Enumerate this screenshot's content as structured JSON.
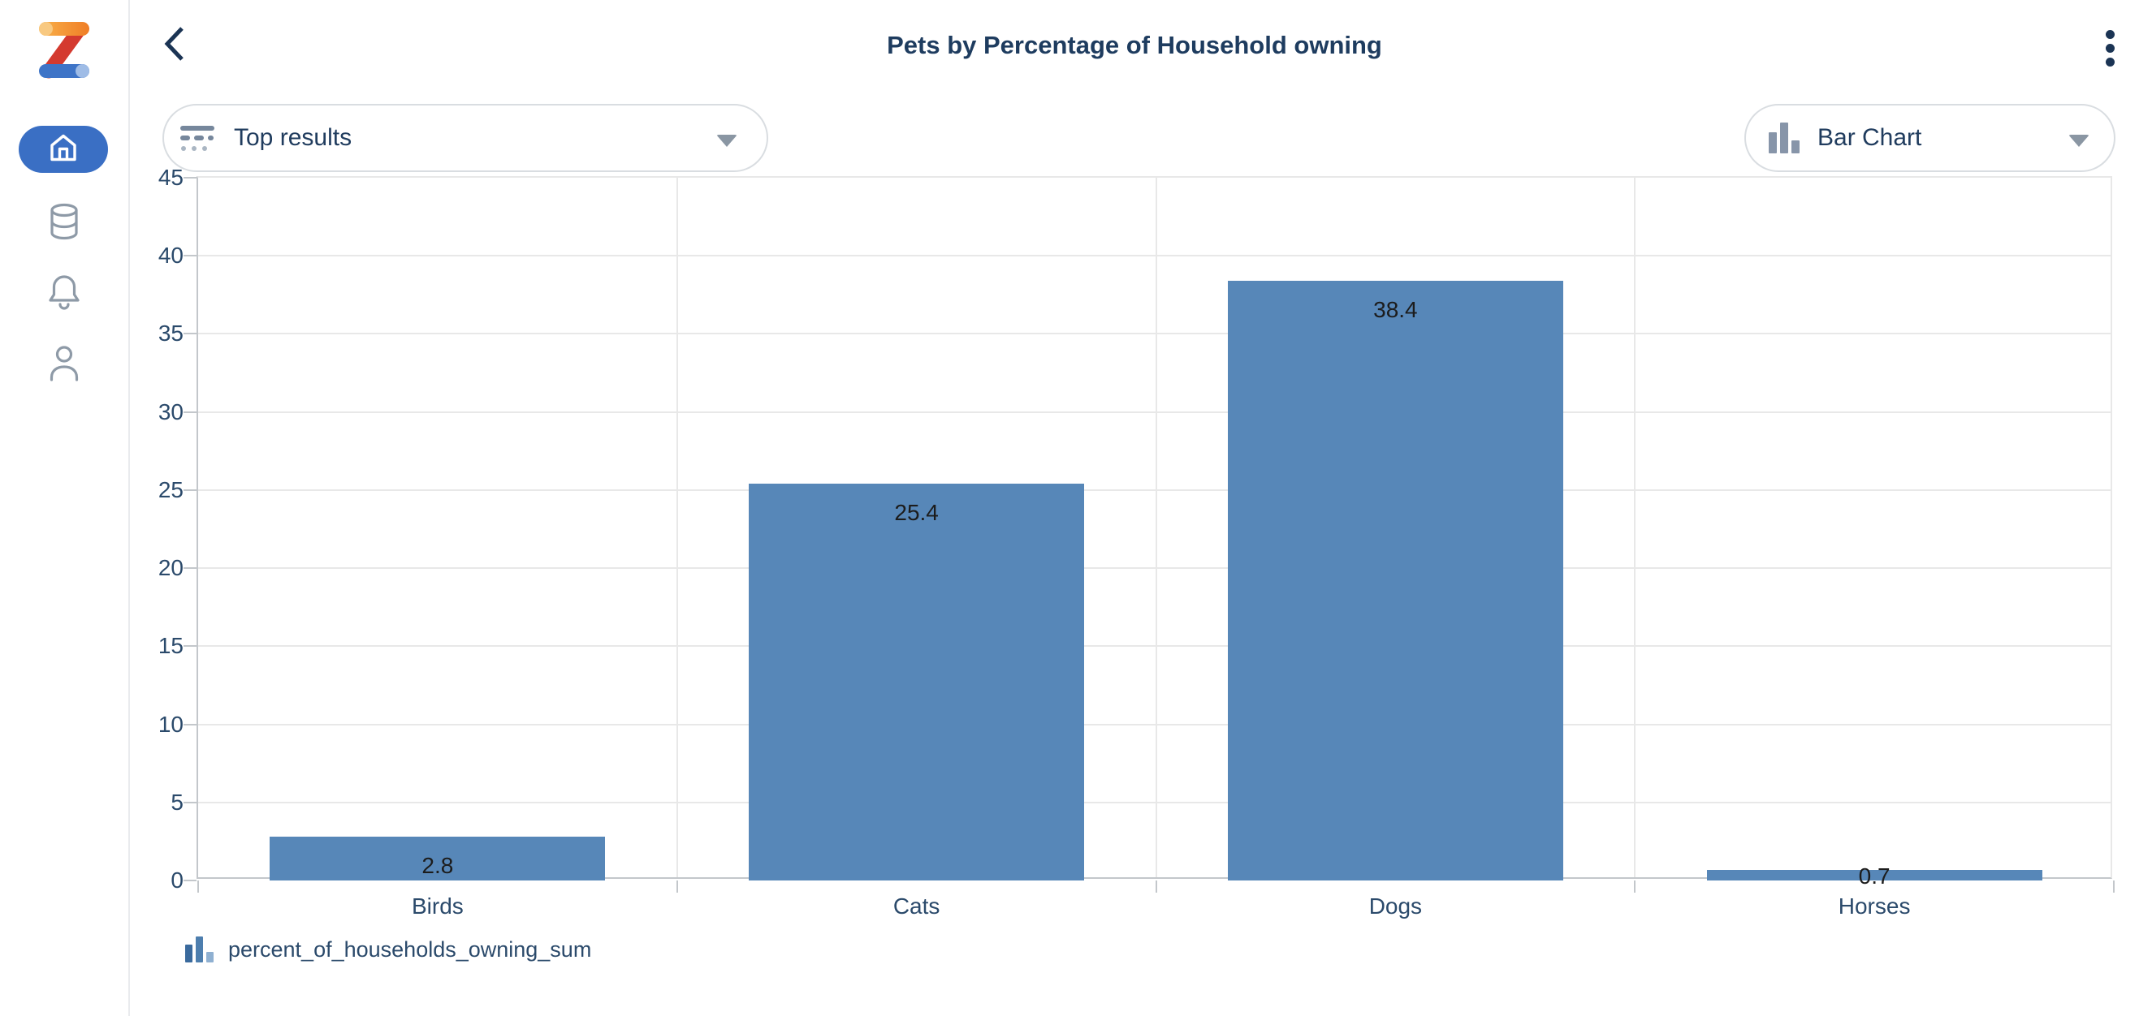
{
  "app": {
    "brand": "Zing Data"
  },
  "header": {
    "title": "Pets by Percentage of Household owning",
    "back_icon": "chevron-left-icon",
    "menu_icon": "kebab-vertical-icon"
  },
  "sidebar": {
    "items": [
      {
        "icon": "home-icon",
        "active": true
      },
      {
        "icon": "database-icon",
        "active": false
      },
      {
        "icon": "bell-icon",
        "active": false
      },
      {
        "icon": "person-icon",
        "active": false
      }
    ]
  },
  "toolbar": {
    "results_dropdown": {
      "label": "Top results",
      "icon": "top-results-icon",
      "caret": "caret-down-icon"
    },
    "chart_type_dropdown": {
      "label": "Bar Chart",
      "icon": "bar-chart-icon",
      "caret": "caret-down-icon"
    }
  },
  "legend": {
    "icon": "bar-chart-icon",
    "label": "percent_of_households_owning_sum"
  },
  "chart_data": {
    "type": "bar",
    "title": "Pets by Percentage of Household owning",
    "categories": [
      "Birds",
      "Cats",
      "Dogs",
      "Horses"
    ],
    "values": [
      2.8,
      25.4,
      38.4,
      0.7
    ],
    "value_labels": [
      "2.8",
      "25.4",
      "38.4",
      "0.7"
    ],
    "series_name": "percent_of_households_owning_sum",
    "xlabel": "",
    "ylabel": "",
    "ylim": [
      0,
      45
    ],
    "yticks": [
      0,
      5,
      10,
      15,
      20,
      25,
      30,
      35,
      40,
      45
    ],
    "grid": true,
    "legend_position": "bottom-left",
    "bar_color": "#5787b8"
  },
  "colors": {
    "accent_blue": "#3a6fc4",
    "bar_blue": "#5787b8",
    "navy_text": "#1e3c5f",
    "axis_text": "#2b4a6b",
    "gridline": "#e8e8e8",
    "axis_line": "#c3c7cb",
    "icon_gray": "#8e9aa7",
    "logo_orange": "#f9a13b",
    "logo_red": "#d43a2f",
    "logo_blue": "#3e74c7"
  }
}
